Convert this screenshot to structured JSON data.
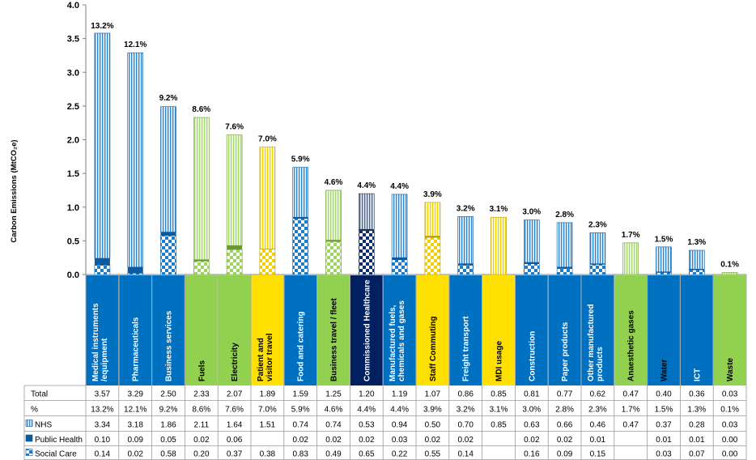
{
  "chart_data": {
    "type": "bar",
    "stacked": true,
    "ylabel": "Carbon Emissions (MtCO₂e)",
    "ylim": [
      0,
      4.0
    ],
    "yticks": [
      "0.0",
      "0.5",
      "1.0",
      "1.5",
      "2.0",
      "2.5",
      "3.0",
      "3.5",
      "4.0"
    ],
    "gridlines": false,
    "categories": [
      "Medical instruments /equipment",
      "Pharmaceuticals",
      "Business services",
      "Fuels",
      "Electricity",
      "Patient and visitor travel",
      "Food and catering",
      "Business travel / fleet",
      "Commissioned Healthcare",
      "Manufactured fuels, chemicals and gases",
      "Staff Commuting",
      "Freight transport",
      "MDI usage",
      "Construction",
      "Paper products",
      "Other manufactured products",
      "Anaesthetic gases",
      "Water",
      "ICT",
      "Waste"
    ],
    "category_colors": [
      "#0070C0",
      "#0070C0",
      "#0070C0",
      "#92D050",
      "#92D050",
      "#FFE000",
      "#0070C0",
      "#92D050",
      "#002060",
      "#0070C0",
      "#FFE000",
      "#0070C0",
      "#FFE000",
      "#0070C0",
      "#0070C0",
      "#0070C0",
      "#92D050",
      "#0070C0",
      "#0070C0",
      "#92D050"
    ],
    "label_text_colors": [
      "#ffffff",
      "#ffffff",
      "#ffffff",
      "#000000",
      "#000000",
      "#000000",
      "#ffffff",
      "#000000",
      "#ffffff",
      "#ffffff",
      "#000000",
      "#ffffff",
      "#000000",
      "#ffffff",
      "#ffffff",
      "#ffffff",
      "#000000",
      "#000000",
      "#ffffff",
      "#000000"
    ],
    "totals": [
      "3.57",
      "3.29",
      "2.50",
      "2.33",
      "2.07",
      "1.89",
      "1.59",
      "1.25",
      "1.20",
      "1.19",
      "1.07",
      "0.86",
      "0.85",
      "0.81",
      "0.77",
      "0.62",
      "0.47",
      "0.40",
      "0.36",
      "0.03"
    ],
    "percents": [
      "13.2%",
      "12.1%",
      "9.2%",
      "8.6%",
      "7.6%",
      "7.0%",
      "5.9%",
      "4.6%",
      "4.4%",
      "4.4%",
      "3.9%",
      "3.2%",
      "3.1%",
      "3.0%",
      "2.8%",
      "2.3%",
      "1.7%",
      "1.5%",
      "1.3%",
      "0.1%"
    ],
    "series": [
      {
        "name": "NHS",
        "pattern": "stripes",
        "values": [
          "3.34",
          "3.18",
          "1.86",
          "2.11",
          "1.64",
          "1.51",
          "0.74",
          "0.74",
          "0.53",
          "0.94",
          "0.50",
          "0.70",
          "0.85",
          "0.63",
          "0.66",
          "0.46",
          "0.47",
          "0.37",
          "0.28",
          "0.03"
        ]
      },
      {
        "name": "Public Health",
        "pattern": "solid",
        "values": [
          "0.10",
          "0.09",
          "0.05",
          "0.02",
          "0.06",
          "",
          "0.02",
          "0.02",
          "0.02",
          "0.03",
          "0.02",
          "0.02",
          "",
          "0.02",
          "0.02",
          "0.01",
          "",
          "0.01",
          "0.01",
          "0.00"
        ]
      },
      {
        "name": "Social Care",
        "pattern": "checker",
        "values": [
          "0.14",
          "0.02",
          "0.58",
          "0.20",
          "0.37",
          "0.38",
          "0.83",
          "0.49",
          "0.65",
          "0.22",
          "0.55",
          "0.14",
          "",
          "0.16",
          "0.09",
          "0.15",
          "",
          "0.03",
          "0.07",
          "0.00"
        ]
      }
    ],
    "table_rows": [
      {
        "label": "Total",
        "key": "totals"
      },
      {
        "label": "%",
        "key": "percents"
      }
    ]
  }
}
